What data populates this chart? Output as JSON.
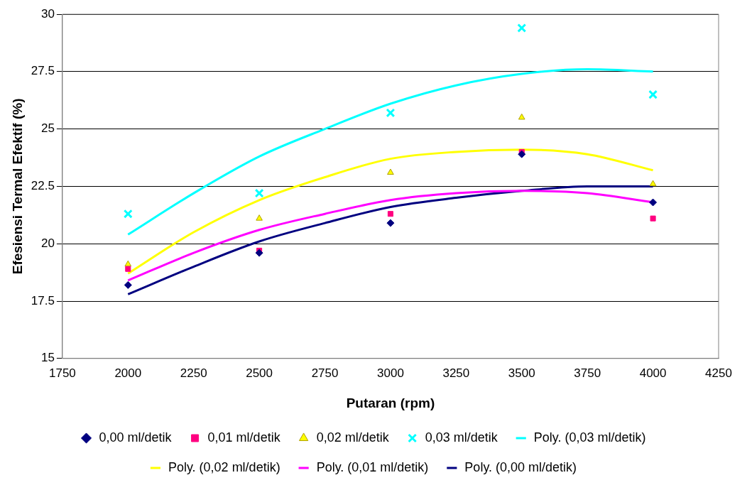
{
  "chart_data": {
    "type": "scatter",
    "xlabel": "Putaran (rpm)",
    "ylabel": "Efesiensi Termal Efektif (%)",
    "xlim": [
      1750,
      4250
    ],
    "xticks": [
      1750,
      2000,
      2250,
      2500,
      2750,
      3000,
      3250,
      3500,
      3750,
      4000,
      4250
    ],
    "ylim": [
      15,
      30
    ],
    "yticks": [
      15,
      17.5,
      20,
      22.5,
      25,
      27.5,
      30
    ],
    "grid": "y",
    "legend": "bottom",
    "series": [
      {
        "name": "0,00 ml/detik",
        "type": "scatter",
        "marker": "diamond",
        "color": "#000080",
        "x": [
          2000,
          2500,
          3000,
          3500,
          4000
        ],
        "values": [
          18.2,
          19.6,
          20.9,
          23.9,
          21.8
        ]
      },
      {
        "name": "0,01 ml/detik",
        "type": "scatter",
        "marker": "square",
        "color": "#ff0080",
        "x": [
          2000,
          2500,
          3000,
          3500,
          4000
        ],
        "values": [
          18.9,
          19.7,
          21.3,
          24.0,
          21.1
        ]
      },
      {
        "name": "0,02 ml/detik",
        "type": "scatter",
        "marker": "triangle",
        "color": "#ffff00",
        "x": [
          2000,
          2500,
          3000,
          3500,
          4000
        ],
        "values": [
          19.1,
          21.1,
          23.1,
          25.5,
          22.6
        ]
      },
      {
        "name": "0,03 ml/detik",
        "type": "scatter",
        "marker": "cross",
        "color": "#00ffff",
        "x": [
          2000,
          2500,
          3000,
          3500,
          4000
        ],
        "values": [
          21.3,
          22.2,
          25.7,
          29.4,
          26.5
        ]
      },
      {
        "name": "Poly. (0,03 ml/detik)",
        "type": "line",
        "marker": "none",
        "color": "#00ffff",
        "x": [
          2000,
          2250,
          2500,
          2750,
          3000,
          3250,
          3500,
          3750,
          4000
        ],
        "values": [
          20.4,
          22.2,
          23.8,
          25.0,
          26.1,
          26.9,
          27.4,
          27.6,
          27.5
        ]
      },
      {
        "name": "Poly. (0,02 ml/detik)",
        "type": "line",
        "marker": "none",
        "color": "#ffff00",
        "x": [
          2000,
          2250,
          2500,
          2750,
          3000,
          3250,
          3500,
          3750,
          4000
        ],
        "values": [
          18.7,
          20.5,
          21.9,
          22.9,
          23.7,
          24.0,
          24.1,
          23.9,
          23.2
        ]
      },
      {
        "name": "Poly. (0,01 ml/detik)",
        "type": "line",
        "marker": "none",
        "color": "#ff00ff",
        "x": [
          2000,
          2250,
          2500,
          2750,
          3000,
          3250,
          3500,
          3750,
          4000
        ],
        "values": [
          18.4,
          19.6,
          20.6,
          21.3,
          21.9,
          22.2,
          22.3,
          22.2,
          21.8
        ]
      },
      {
        "name": "Poly. (0,00 ml/detik)",
        "type": "line",
        "marker": "none",
        "color": "#000080",
        "x": [
          2000,
          2250,
          2500,
          2750,
          3000,
          3250,
          3500,
          3750,
          4000
        ],
        "values": [
          17.8,
          19.0,
          20.1,
          20.9,
          21.6,
          22.0,
          22.3,
          22.5,
          22.5
        ]
      }
    ]
  }
}
